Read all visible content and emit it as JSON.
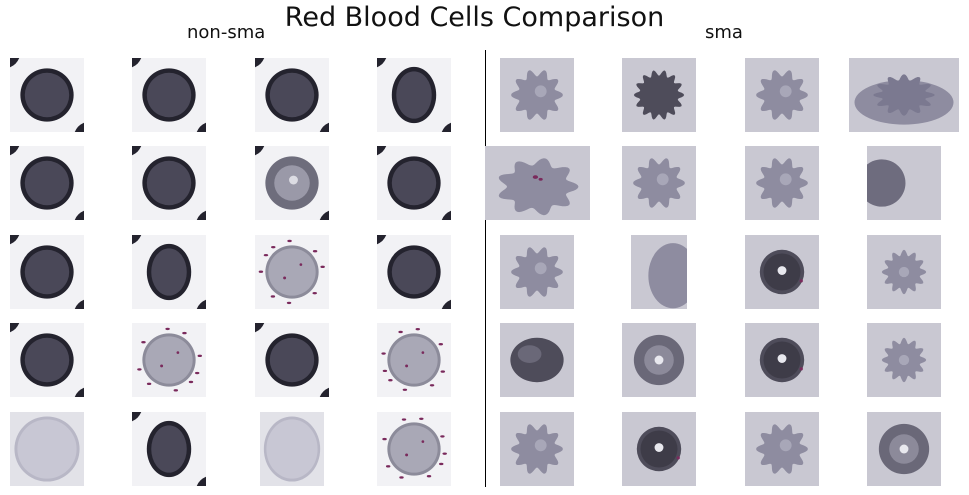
{
  "figure": {
    "title": "Red Blood Cells Comparison",
    "groups": [
      {
        "label": "non-sma",
        "key": "non_sma"
      },
      {
        "label": "sma",
        "key": "sma"
      }
    ]
  },
  "colors": {
    "left_bg": "#f2f2f5",
    "left_cell": "#4a4858",
    "left_dark": "#24232e",
    "right_bg": "#c9c8d2",
    "right_cell": "#8e8ca0",
    "right_dark": "#4e4c5a",
    "parasite": "#7a2a5c"
  },
  "grid": {
    "non_sma": [
      [
        "dark-round",
        "dark-round",
        "dark-round",
        "dark-oval"
      ],
      [
        "dark-round",
        "dark-round",
        "ring-light",
        "dark-round"
      ],
      [
        "dark-round",
        "dark-oval",
        "pale-parasite",
        "dark-round"
      ],
      [
        "dark-round",
        "pale-parasite",
        "dark-round",
        "pale-parasite"
      ],
      [
        "pale-large",
        "dark-oval",
        "pale-large",
        "pale-parasite"
      ]
    ],
    "sma": [
      [
        "crenated-light",
        "crenated-dark",
        "crenated-light",
        "crenated-wide"
      ],
      [
        "crenated-parasite",
        "crenated-light",
        "crenated-light",
        "half-dark"
      ],
      [
        "crenated-light",
        "half-pale",
        "dark-dot",
        "crenated-small"
      ],
      [
        "oval-dark",
        "ring-dot",
        "dark-dot",
        "crenated-small"
      ],
      [
        "crenated-light",
        "dark-dot",
        "crenated-light",
        "ring-dot"
      ]
    ]
  }
}
